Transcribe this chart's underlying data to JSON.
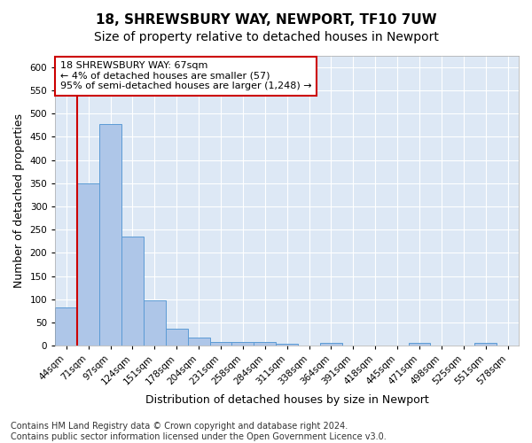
{
  "title1": "18, SHREWSBURY WAY, NEWPORT, TF10 7UW",
  "title2": "Size of property relative to detached houses in Newport",
  "xlabel": "Distribution of detached houses by size in Newport",
  "ylabel": "Number of detached properties",
  "categories": [
    "44sqm",
    "71sqm",
    "97sqm",
    "124sqm",
    "151sqm",
    "178sqm",
    "204sqm",
    "231sqm",
    "258sqm",
    "284sqm",
    "311sqm",
    "338sqm",
    "364sqm",
    "391sqm",
    "418sqm",
    "445sqm",
    "471sqm",
    "498sqm",
    "525sqm",
    "551sqm",
    "578sqm"
  ],
  "values": [
    83,
    350,
    478,
    235,
    97,
    37,
    18,
    8,
    9,
    9,
    5,
    0,
    6,
    0,
    0,
    0,
    6,
    0,
    0,
    6,
    0
  ],
  "bar_color": "#aec6e8",
  "bar_edge_color": "#5b9bd5",
  "annotation_line1": "18 SHREWSBURY WAY: 67sqm",
  "annotation_line2": "← 4% of detached houses are smaller (57)",
  "annotation_line3": "95% of semi-detached houses are larger (1,248) →",
  "annotation_box_color": "#ffffff",
  "annotation_box_edge_color": "#cc0000",
  "vline_color": "#cc0000",
  "vline_x": 0.5,
  "ylim": [
    0,
    625
  ],
  "yticks": [
    0,
    50,
    100,
    150,
    200,
    250,
    300,
    350,
    400,
    450,
    500,
    550,
    600
  ],
  "plot_bg_color": "#dde8f5",
  "grid_color": "#ffffff",
  "fig_bg_color": "#ffffff",
  "footer_line1": "Contains HM Land Registry data © Crown copyright and database right 2024.",
  "footer_line2": "Contains public sector information licensed under the Open Government Licence v3.0.",
  "title1_fontsize": 11,
  "title2_fontsize": 10,
  "xlabel_fontsize": 9,
  "ylabel_fontsize": 9,
  "tick_fontsize": 7.5,
  "annotation_fontsize": 8,
  "footer_fontsize": 7
}
